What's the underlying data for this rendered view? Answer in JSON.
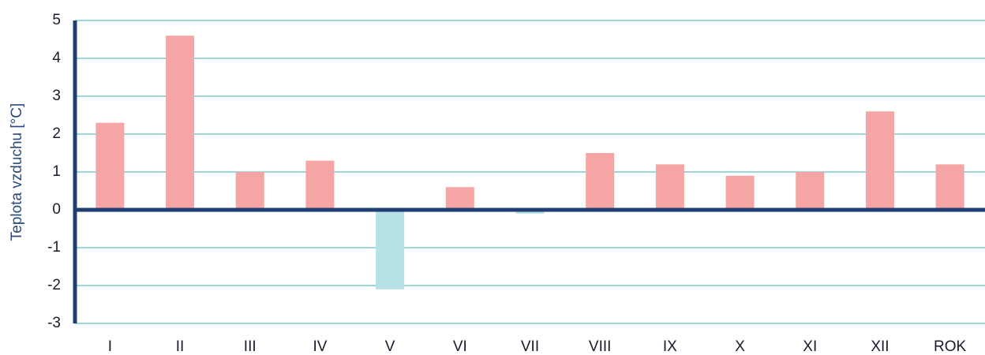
{
  "chart_data": {
    "type": "bar",
    "y_label": "Teplota vzduchu [°C]",
    "categories": [
      "I",
      "II",
      "III",
      "IV",
      "V",
      "VI",
      "VII",
      "VIII",
      "IX",
      "X",
      "XI",
      "XII",
      "ROK"
    ],
    "values": [
      2.3,
      4.6,
      1.0,
      1.3,
      -2.1,
      0.6,
      -0.1,
      1.5,
      1.2,
      0.9,
      1.0,
      2.6,
      1.2
    ],
    "positive_color": "#f5a6a4",
    "negative_color": "#b6e1e7",
    "ylim": [
      -3,
      5
    ],
    "yticks": [
      -3,
      -2,
      -1,
      0,
      1,
      2,
      3,
      4,
      5
    ],
    "grid": true,
    "grid_color": "#3aafbf",
    "axis_color": "#1f3f72"
  }
}
